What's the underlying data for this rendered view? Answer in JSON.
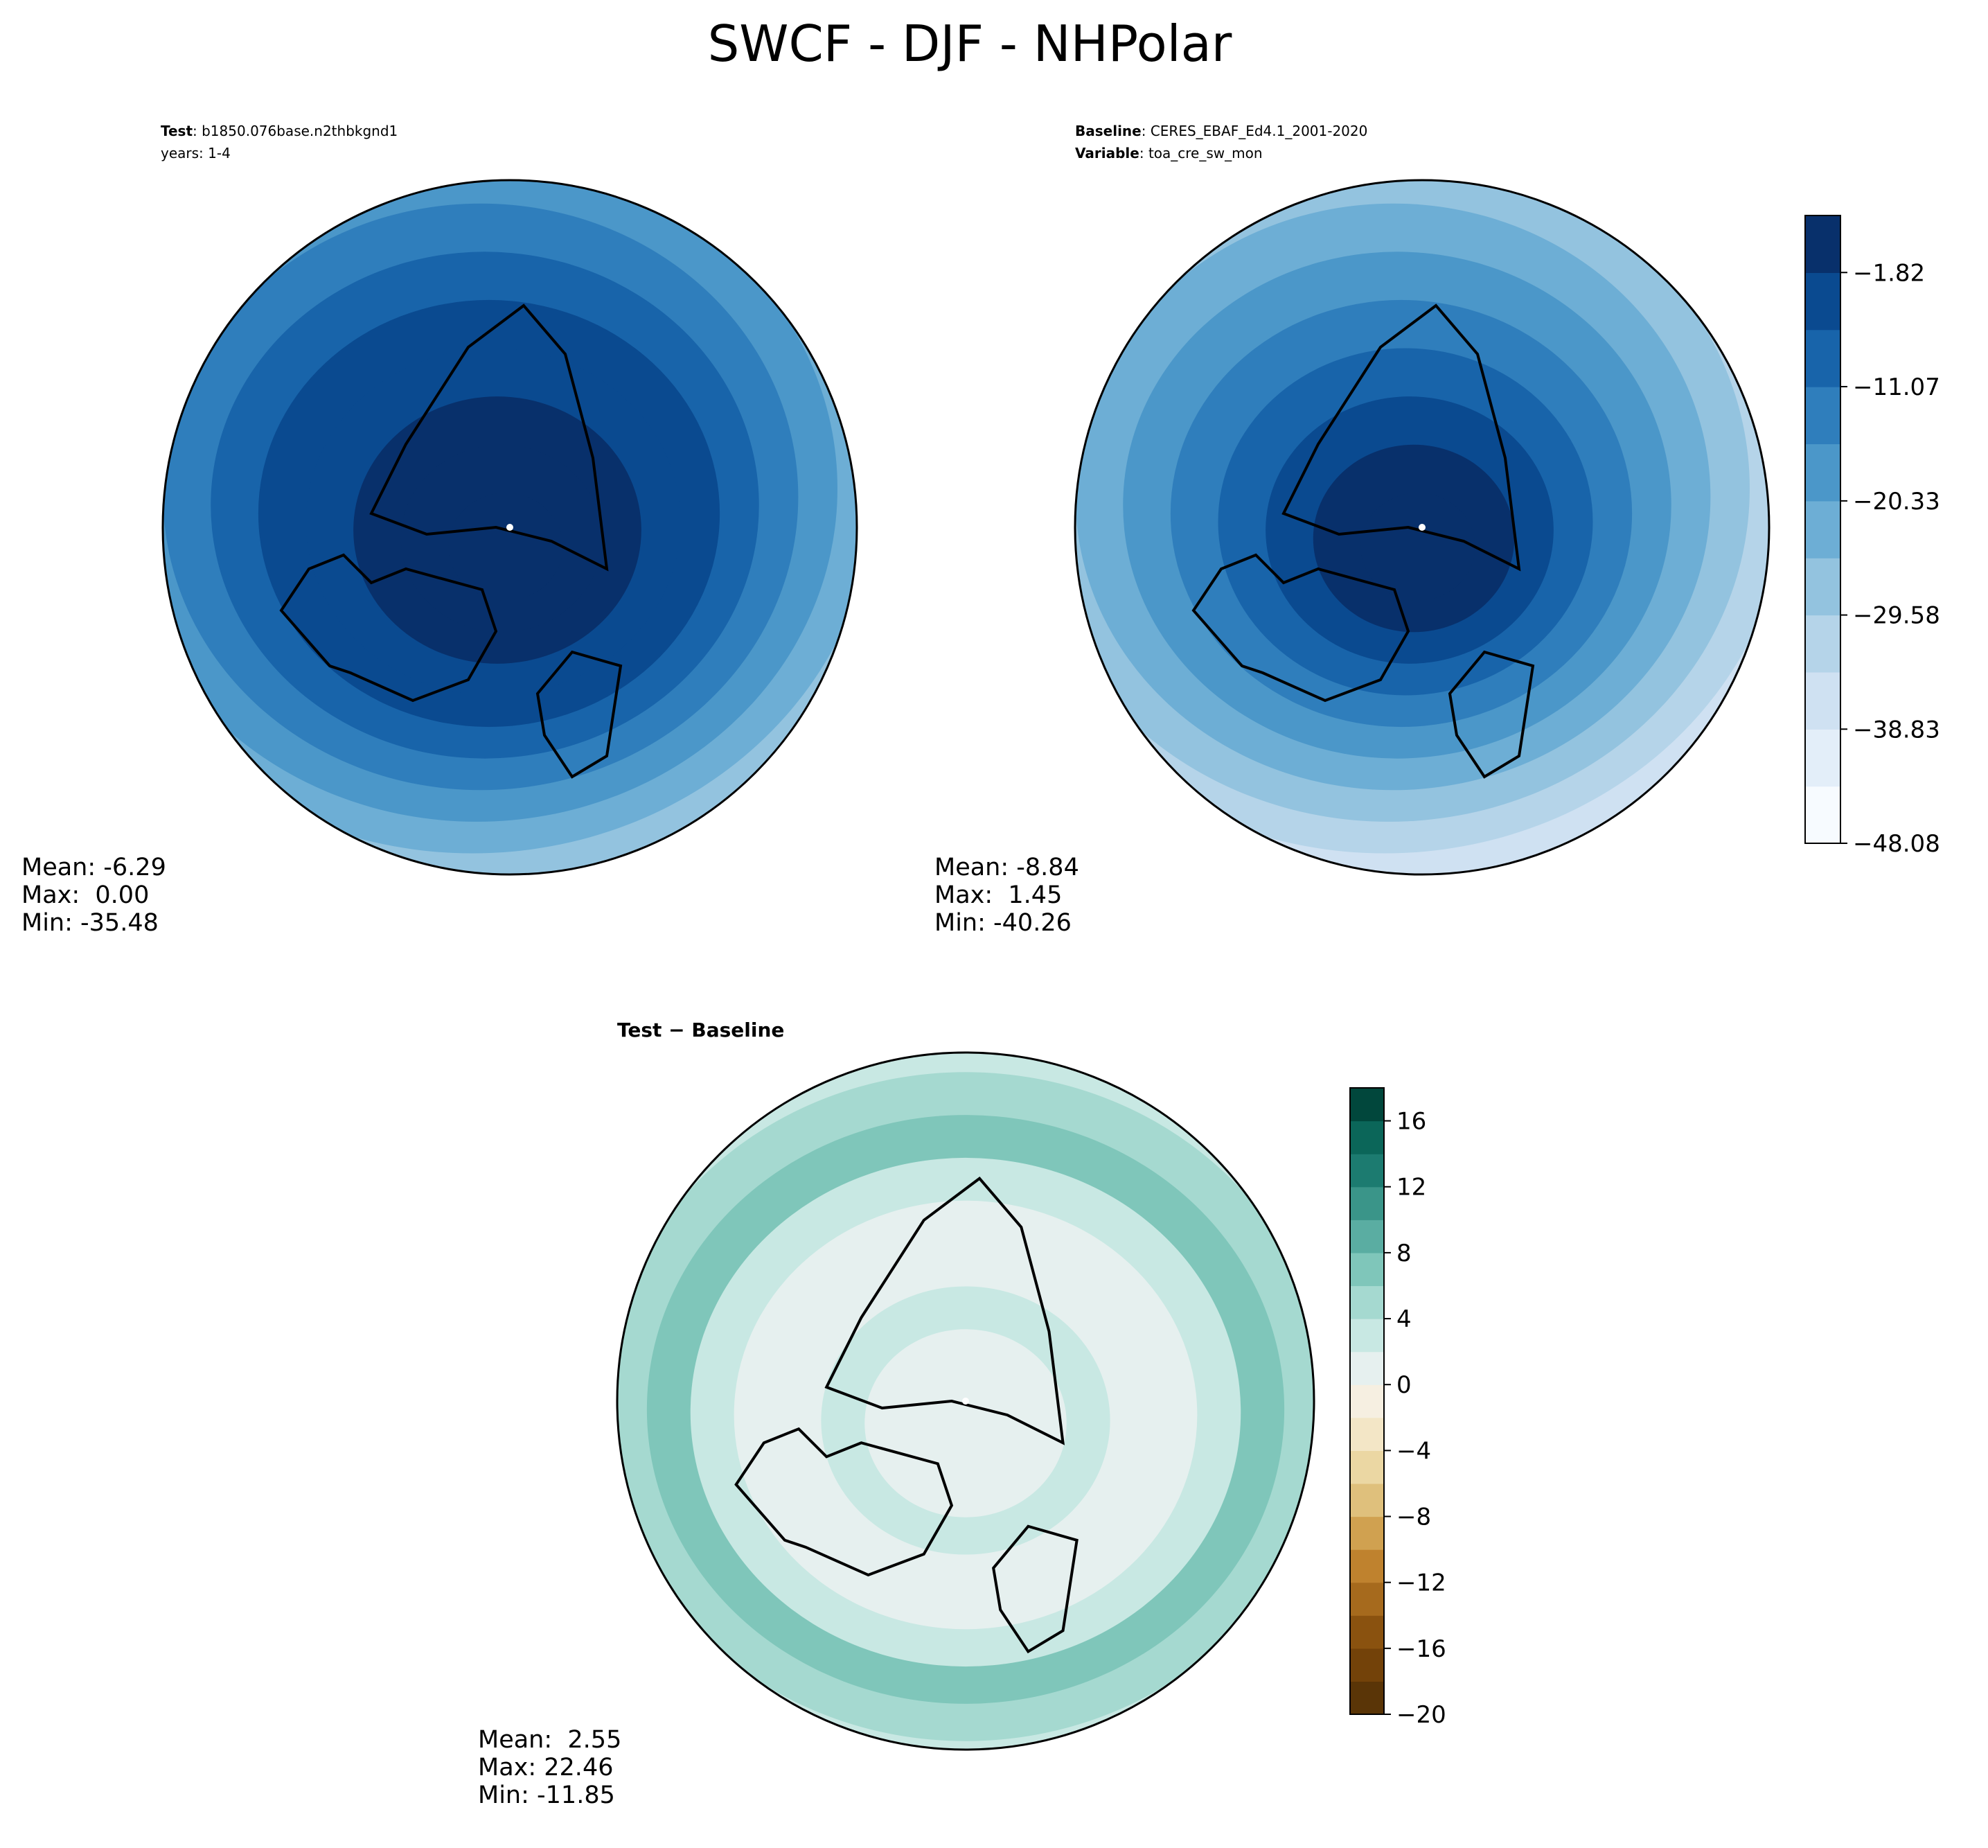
{
  "title": "SWCF - DJF - NHPolar",
  "chart_data": [
    {
      "type": "map",
      "lines": [
        {
          "bold": "Test",
          "text": ": b1850.076base.n2thbkgnd1"
        },
        {
          "text": "years: 1-4"
        }
      ],
      "stats": [
        "Mean: -6.29",
        "Max:  0.00",
        "Min: -35.48"
      ]
    },
    {
      "type": "map",
      "lines": [
        {
          "bold": "Baseline",
          "text": ": CERES_EBAF_Ed4.1_2001-2020"
        },
        {
          "bold": "Variable",
          "text": ": toa_cre_sw_mon"
        }
      ],
      "stats": [
        "Mean: -8.84",
        "Max:  1.45",
        "Min: -40.26"
      ],
      "colorbar": {
        "zlim": [
          -48.08,
          2.8
        ],
        "ticks": [
          {
            "value": -48.08,
            "label": "−48.08"
          },
          {
            "value": -38.83,
            "label": "−38.83"
          },
          {
            "value": -29.58,
            "label": "−29.58"
          },
          {
            "value": -20.33,
            "label": "−20.33"
          },
          {
            "value": -11.07,
            "label": "−11.07"
          },
          {
            "value": -1.82,
            "label": "−1.82"
          }
        ],
        "colors": [
          "#f7fbff",
          "#e3eef9",
          "#cfe1f2",
          "#b5d4e9",
          "#93c3df",
          "#6daed5",
          "#4b97c9",
          "#2f7ebc",
          "#1864aa",
          "#0a4a90",
          "#08306b"
        ]
      }
    },
    {
      "type": "map",
      "lines": [
        {
          "bold": "Test − Baseline"
        }
      ],
      "stats": [
        "Mean:  2.55",
        "Max: 22.46",
        "Min: -11.85"
      ],
      "colorbar": {
        "zlim": [
          -20,
          18
        ],
        "ticks": [
          {
            "value": -20,
            "label": "−20"
          },
          {
            "value": -16,
            "label": "−16"
          },
          {
            "value": -12,
            "label": "−12"
          },
          {
            "value": -8,
            "label": "−8"
          },
          {
            "value": -4,
            "label": "−4"
          },
          0,
          4,
          8,
          12,
          16
        ],
        "colors": [
          "#5a3507",
          "#734209",
          "#8a520f",
          "#a66a1d",
          "#bf822e",
          "#d0a150",
          "#dfc07c",
          "#ebd7a3",
          "#f3e6c6",
          "#f6efe1",
          "#e6f0ef",
          "#c8e8e3",
          "#a5d9d0",
          "#7fc6ba",
          "#5aada2",
          "#3a9589",
          "#1c7b70",
          "#0b6659",
          "#01473c"
        ]
      }
    }
  ]
}
